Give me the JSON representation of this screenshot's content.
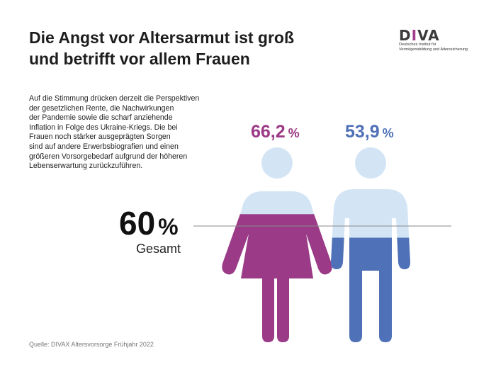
{
  "header": {
    "title_line1": "Die Angst vor Altersarmut ist groß",
    "title_line2": "und betrifft vor allem Frauen"
  },
  "logo": {
    "word_pre": "D",
    "word_i": "I",
    "word_post": "VA",
    "line1": "Deutsches Institut für",
    "line2": "Vermögensbildung und Alterssicherung"
  },
  "body_text": [
    "Auf die Stimmung drücken derzeit die Perspektiven",
    "der gesetzlichen Rente, die Nachwirkungen",
    "der Pandemie sowie die scharf anziehende",
    "Inflation in Folge des Ukraine-Kriegs. Die bei",
    "Frauen noch stärker ausgeprägten Sorgen",
    "sind auf andere Erwerbsbiografien und einen",
    "größeren Vorsorgebedarf aufgrund der höheren",
    "Lebenserwartung zurückzuführen."
  ],
  "source": "Quelle: DIVAX Altersvorsorge Frühjahr 2022",
  "colors": {
    "women": "#9b3a86",
    "men": "#4f71b7",
    "figure_background": "#d3e5f5",
    "reference_line": "#8a8a8a"
  },
  "chart_data": {
    "type": "bar",
    "categories": [
      "Frauen",
      "Männer"
    ],
    "values": [
      66.2,
      53.9
    ],
    "value_labels": [
      "66,2",
      "53,9"
    ],
    "unit": "%",
    "ylim": [
      0,
      100
    ],
    "reference": {
      "value": 60,
      "label": "60",
      "unit": "%",
      "caption": "Gesamt"
    },
    "icons": [
      "woman-figure-icon",
      "man-figure-icon"
    ]
  }
}
